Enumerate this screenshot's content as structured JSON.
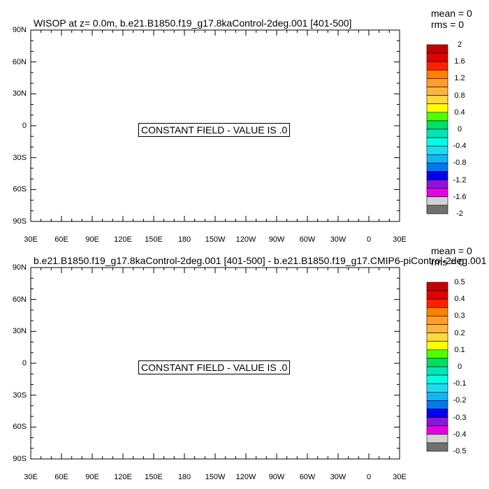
{
  "chart_data": [
    {
      "type": "heatmap",
      "title": "WISOP at z=   0.0m, b.e21.B1850.f19_g17.8kaControl-2deg.001 [401-500]",
      "stats": [
        "mean = 0",
        "rms = 0"
      ],
      "annotation": "CONSTANT FIELD - VALUE IS .0",
      "xticks": [
        "30E",
        "60E",
        "90E",
        "120E",
        "150E",
        "180",
        "150W",
        "120W",
        "90W",
        "60W",
        "30W",
        "0",
        "30E"
      ],
      "yticks": [
        "90N",
        "60N",
        "30N",
        "0",
        "30S",
        "60S",
        "90S"
      ],
      "xlim": [
        30,
        390
      ],
      "ylim": [
        -90,
        90
      ],
      "colorbar": {
        "colors": [
          "#c40000",
          "#e00000",
          "#ff2000",
          "#ff7f00",
          "#ff9c2a",
          "#ffb43c",
          "#ffd83c",
          "#ffff00",
          "#50ff00",
          "#00e060",
          "#00e6b4",
          "#00ffe6",
          "#1edcf0",
          "#14b4f0",
          "#0078f0",
          "#0000f0",
          "#8c14dc",
          "#e600e6",
          "#d2d2d2",
          "#707070"
        ],
        "labels": [
          "2",
          "1.6",
          "1.2",
          "0.8",
          "0.4",
          "0",
          "-0.4",
          "-0.8",
          "-1.2",
          "-1.6",
          "-2"
        ]
      }
    },
    {
      "type": "heatmap",
      "title": "b.e21.B1850.f19_g17.8kaControl-2deg.001 [401-500] - b.e21.B1850.f19_g17.CMIP6-piControl-2deg.001",
      "stats": [
        "mean = 0",
        "rms = 0"
      ],
      "annotation": "CONSTANT FIELD - VALUE IS .0",
      "xticks": [
        "30E",
        "60E",
        "90E",
        "120E",
        "150E",
        "180",
        "150W",
        "120W",
        "90W",
        "60W",
        "30W",
        "0",
        "30E"
      ],
      "yticks": [
        "90N",
        "60N",
        "30N",
        "0",
        "30S",
        "60S",
        "90S"
      ],
      "xlim": [
        30,
        390
      ],
      "ylim": [
        -90,
        90
      ],
      "colorbar": {
        "colors": [
          "#c40000",
          "#e00000",
          "#ff2000",
          "#ff7f00",
          "#ff9c2a",
          "#ffb43c",
          "#ffd83c",
          "#ffff00",
          "#50ff00",
          "#00e060",
          "#00e6b4",
          "#00ffe6",
          "#1edcf0",
          "#14b4f0",
          "#0078f0",
          "#0000f0",
          "#8c14dc",
          "#e600e6",
          "#d2d2d2",
          "#707070"
        ],
        "labels": [
          "0.5",
          "0.4",
          "0.3",
          "0.2",
          "0.1",
          "0",
          "-0.1",
          "-0.2",
          "-0.3",
          "-0.4",
          "-0.5"
        ]
      }
    }
  ]
}
